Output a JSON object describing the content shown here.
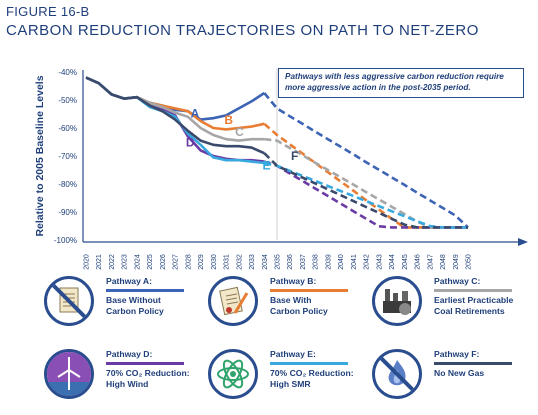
{
  "figure_label": "FIGURE 16-B",
  "title": "CARBON REDUCTION TRAJECTORIES ON PATH TO NET-ZERO",
  "callout": "Pathways with less aggressive carbon reduction require more aggressive action in the post-2035 period.",
  "colors": {
    "title": "#1f3f7a",
    "axis": "#2a4d8f",
    "A": "#3d63b5",
    "B": "#e87d33",
    "C": "#a6a6a6",
    "D": "#6a3ba4",
    "E": "#38a9de",
    "F": "#3a4a6b"
  },
  "chart_data": {
    "type": "line",
    "ylabel": "Relative to 2005 Baseline Levels",
    "ylim": [
      -100,
      -40
    ],
    "yticks": [
      "-40%",
      "-50%",
      "-60%",
      "-70%",
      "-80%",
      "-90%",
      "-100%"
    ],
    "x": [
      "2020",
      "2021",
      "2022",
      "2023",
      "2024",
      "2025",
      "2026",
      "2027",
      "2028",
      "2029",
      "2030",
      "2031",
      "2032",
      "2033",
      "2034",
      "2035",
      "2036",
      "2037",
      "2038",
      "2039",
      "2040",
      "2041",
      "2042",
      "2043",
      "2044",
      "2045",
      "2046",
      "2047",
      "2048",
      "2049",
      "2050"
    ],
    "projection_start": "2035",
    "series": [
      {
        "name": "A",
        "values": [
          -42,
          -44,
          -48,
          -49.5,
          -49,
          -51,
          -52,
          -53.5,
          -54,
          -57,
          -56.5,
          -55.5,
          -53,
          -50.5,
          -47.5,
          -53,
          -55.8,
          -58.5,
          -61.3,
          -64,
          -66.7,
          -69.4,
          -72.2,
          -74.9,
          -77.6,
          -80.3,
          -83.1,
          -85.8,
          -88.5,
          -91.2,
          -95.5
        ]
      },
      {
        "name": "B",
        "values": [
          -42,
          -44,
          -48,
          -49.5,
          -49,
          -51,
          -52,
          -53,
          -54,
          -57.5,
          -60,
          -60.5,
          -60,
          -59.5,
          -58.5,
          -62.5,
          -65.8,
          -69.1,
          -72.5,
          -75.8,
          -79.1,
          -82.4,
          -85.8,
          -89.1,
          -92.4,
          -95.5,
          -95.5,
          -95.5,
          -95.5,
          -95.5,
          -95.5
        ]
      },
      {
        "name": "C",
        "values": [
          -42,
          -44,
          -48,
          -49.5,
          -49,
          -51,
          -52.5,
          -54.5,
          -56,
          -60,
          -62.5,
          -64,
          -64.5,
          -64,
          -64,
          -64.5,
          -67.1,
          -69.7,
          -72.4,
          -75,
          -77.6,
          -80.2,
          -82.9,
          -85.5,
          -88.1,
          -90.7,
          -93.4,
          -95.5,
          -95.5,
          -95.5,
          -95.5
        ]
      },
      {
        "name": "D",
        "values": [
          -42,
          -44,
          -48,
          -49.5,
          -49,
          -52,
          -53.5,
          -55.5,
          -63,
          -68,
          -70,
          -71,
          -71.5,
          -71.5,
          -72,
          -73.5,
          -76.2,
          -78.9,
          -81.6,
          -84.3,
          -87,
          -89.7,
          -92.4,
          -95.1,
          -95.5,
          -95.5,
          -95.5,
          -95.5,
          -95.5,
          -95.5,
          -95.5
        ]
      },
      {
        "name": "E",
        "values": [
          -42,
          -44,
          -48,
          -49.5,
          -49,
          -52.5,
          -54,
          -56,
          -62,
          -66,
          -70.5,
          -71.5,
          -71.5,
          -72,
          -72.5,
          -73.5,
          -75.3,
          -77.1,
          -78.9,
          -80.7,
          -82.5,
          -84.3,
          -86.1,
          -87.9,
          -89.7,
          -91.5,
          -93.3,
          -95,
          -95.5,
          -95.5,
          -95.5
        ]
      },
      {
        "name": "F",
        "values": [
          -42,
          -44,
          -48,
          -49.5,
          -49,
          -52,
          -54,
          -57,
          -61,
          -64.5,
          -66,
          -66.5,
          -66.5,
          -67,
          -69,
          -73.5,
          -75.6,
          -77.7,
          -79.8,
          -81.9,
          -84,
          -86.1,
          -88.2,
          -90.3,
          -92.4,
          -94.5,
          -95.5,
          -95.5,
          -95.5,
          -95.5,
          -95.5
        ]
      }
    ],
    "labels": [
      {
        "series": "A",
        "text": "A"
      },
      {
        "series": "B",
        "text": "B"
      },
      {
        "series": "C",
        "text": "C"
      },
      {
        "series": "D",
        "text": "D"
      },
      {
        "series": "E",
        "text": "E"
      },
      {
        "series": "F",
        "text": "F"
      }
    ]
  },
  "legend": [
    {
      "key": "A",
      "icon": "no-carbon-policy-document-icon",
      "name": "Pathway A:",
      "desc": "Base Without\nCarbon Policy"
    },
    {
      "key": "B",
      "icon": "carbon-policy-document-icon",
      "name": "Pathway B:",
      "desc": "Base With\nCarbon Policy"
    },
    {
      "key": "C",
      "icon": "coal-retirement-icon",
      "name": "Pathway C:",
      "desc": "Earliest Practicable\nCoal Retirements"
    },
    {
      "key": "D",
      "icon": "wind-turbine-icon",
      "name": "Pathway D:",
      "desc": "70% CO₂ Reduction:\nHigh Wind"
    },
    {
      "key": "E",
      "icon": "atom-icon",
      "name": "Pathway E:",
      "desc": "70% CO₂ Reduction:\nHigh SMR"
    },
    {
      "key": "F",
      "icon": "no-gas-flame-icon",
      "name": "Pathway F:",
      "desc": "No New Gas"
    }
  ]
}
